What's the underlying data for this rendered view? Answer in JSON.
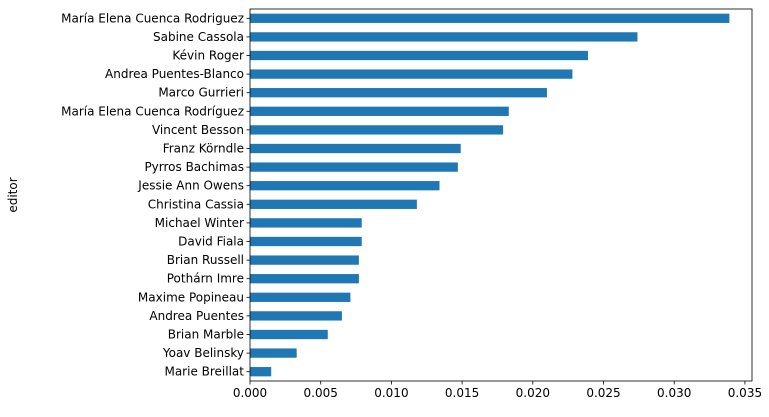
{
  "chart_data": {
    "type": "bar",
    "orientation": "horizontal",
    "title": "",
    "xlabel": "",
    "ylabel": "editor",
    "xlim": [
      0,
      0.0355
    ],
    "xticks": [
      "0.000",
      "0.005",
      "0.010",
      "0.015",
      "0.020",
      "0.025",
      "0.030",
      "0.035"
    ],
    "xtick_values": [
      0,
      0.005,
      0.01,
      0.015,
      0.02,
      0.025,
      0.03,
      0.035
    ],
    "grid": false,
    "bar_color": "#1f77b4",
    "categories": [
      "María Elena Cuenca Rodriguez",
      "Sabine Cassola",
      "Kévin Roger",
      "Andrea Puentes-Blanco",
      "Marco Gurrieri",
      "María Elena Cuenca Rodríguez",
      "Vincent Besson",
      "Franz Körndle",
      "Pyrros Bachimas",
      "Jessie Ann Owens",
      "Christina Cassia",
      "Michael Winter",
      "David Fiala",
      "Brian Russell",
      "Pothárn Imre",
      "Maxime Popineau",
      "Andrea Puentes",
      "Brian Marble",
      "Yoav Belinsky",
      "Marie Breillat"
    ],
    "values": [
      0.0339,
      0.0274,
      0.0239,
      0.0228,
      0.021,
      0.0183,
      0.0179,
      0.0149,
      0.0147,
      0.0134,
      0.0118,
      0.0079,
      0.0079,
      0.0077,
      0.0077,
      0.0071,
      0.0065,
      0.0055,
      0.0033,
      0.0015
    ]
  }
}
